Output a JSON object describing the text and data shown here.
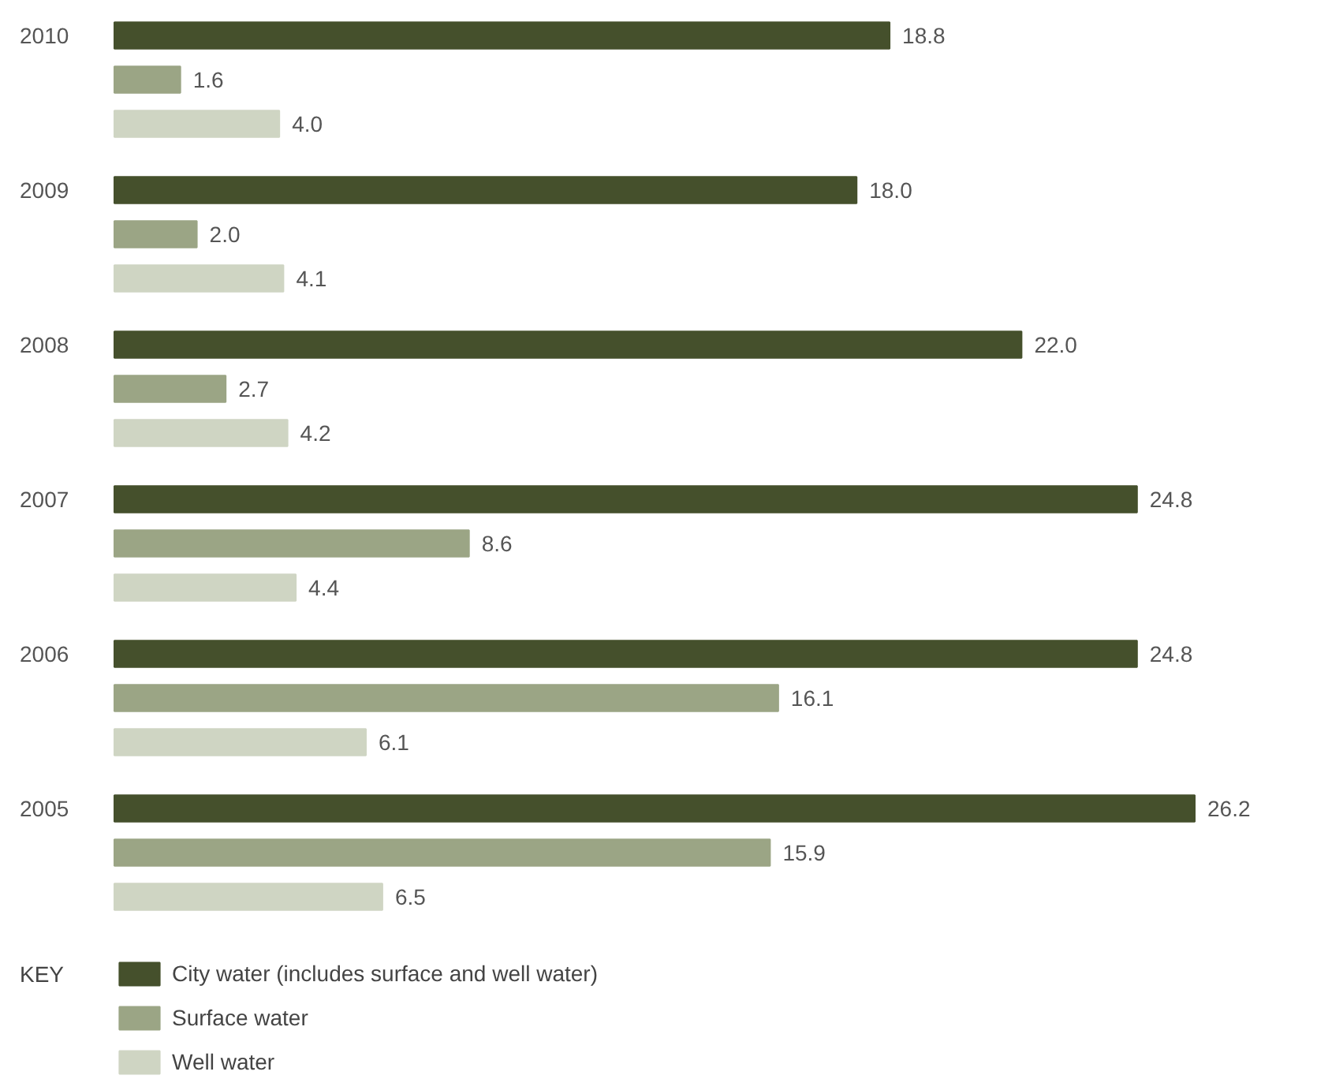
{
  "chart_data": {
    "type": "bar",
    "orientation": "horizontal",
    "categories": [
      "2010",
      "2009",
      "2008",
      "2007",
      "2006",
      "2005"
    ],
    "series": [
      {
        "name": "City water (includes surface and well water)",
        "color": "#45502c",
        "values": [
          18.8,
          18.0,
          22.0,
          24.8,
          24.8,
          26.2
        ],
        "value_labels": [
          "18.8",
          "18.0",
          "22.0",
          "24.8",
          "24.8",
          "26.2"
        ]
      },
      {
        "name": "Surface water",
        "color": "#9ba585",
        "values": [
          1.6,
          2.0,
          2.7,
          8.6,
          16.1,
          15.9
        ],
        "value_labels": [
          "1.6",
          "2.0",
          "2.7",
          "8.6",
          "16.1",
          "15.9"
        ]
      },
      {
        "name": "Well water",
        "color": "#cfd5c3",
        "values": [
          4.0,
          4.1,
          4.2,
          4.4,
          6.1,
          6.5
        ],
        "value_labels": [
          "4.0",
          "4.1",
          "4.2",
          "4.4",
          "6.1",
          "6.5"
        ]
      }
    ],
    "legend": "bottom",
    "legend_title": "KEY"
  }
}
